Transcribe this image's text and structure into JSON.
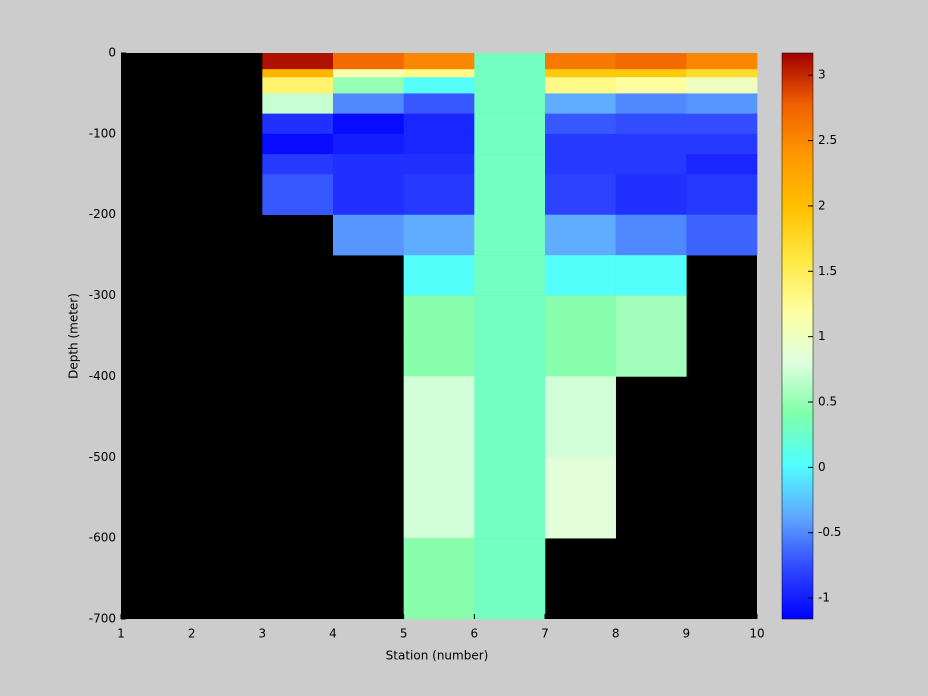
{
  "chart_data": {
    "type": "heatmap",
    "xlabel": "Station (number)",
    "ylabel": "Depth (meter)",
    "x_edges": [
      1,
      2,
      3,
      4,
      5,
      6,
      7,
      8,
      9,
      10
    ],
    "y_edges": [
      0,
      -20,
      -30,
      -50,
      -75,
      -100,
      -125,
      -150,
      -200,
      -250,
      -300,
      -350,
      -400,
      -500,
      -600,
      -700
    ],
    "z": [
      [
        null,
        null,
        3.1,
        2.7,
        2.5,
        0.3,
        2.6,
        2.7,
        2.5
      ],
      [
        null,
        null,
        2.1,
        1.1,
        1.3,
        0.3,
        1.9,
        1.9,
        1.7
      ],
      [
        null,
        null,
        1.4,
        0.5,
        0.05,
        0.3,
        1.3,
        1.2,
        1.0
      ],
      [
        null,
        null,
        0.7,
        -0.5,
        -0.7,
        0.3,
        -0.35,
        -0.5,
        -0.45
      ],
      [
        null,
        null,
        -0.9,
        -1.1,
        -0.95,
        0.3,
        -0.7,
        -0.75,
        -0.75
      ],
      [
        null,
        null,
        -1.1,
        -1.0,
        -0.95,
        0.3,
        -0.85,
        -0.85,
        -0.85
      ],
      [
        null,
        null,
        -0.85,
        -0.9,
        -0.9,
        0.3,
        -0.85,
        -0.85,
        -0.95
      ],
      [
        null,
        null,
        -0.7,
        -0.9,
        -0.85,
        0.3,
        -0.8,
        -0.9,
        -0.85
      ],
      [
        null,
        null,
        null,
        -0.45,
        -0.35,
        0.3,
        -0.35,
        -0.5,
        -0.65
      ],
      [
        null,
        null,
        null,
        null,
        0.05,
        0.3,
        0.05,
        0.05,
        null
      ],
      [
        null,
        null,
        null,
        null,
        0.45,
        0.3,
        0.45,
        0.55,
        null
      ],
      [
        null,
        null,
        null,
        null,
        0.45,
        0.3,
        0.45,
        0.55,
        null
      ],
      [
        null,
        null,
        null,
        null,
        0.75,
        0.3,
        0.75,
        null,
        null
      ],
      [
        null,
        null,
        null,
        null,
        0.75,
        0.3,
        0.85,
        null,
        null
      ],
      [
        null,
        null,
        null,
        null,
        0.45,
        0.3,
        null,
        null,
        null
      ]
    ],
    "xlim": [
      1,
      10
    ],
    "xticks": [
      1,
      2,
      3,
      4,
      5,
      6,
      7,
      8,
      9,
      10
    ],
    "ylim": [
      -700,
      0
    ],
    "yticks": [
      0,
      -100,
      -200,
      -300,
      -400,
      -500,
      -600,
      -700
    ],
    "clim": [
      -1.16,
      3.17
    ],
    "cticks": [
      -1,
      -0.5,
      0,
      0.5,
      1,
      1.5,
      2,
      2.5,
      3
    ],
    "colormap": [
      "#0000ff",
      "#3048ff",
      "#60a8ff",
      "#50ffff",
      "#80ffa8",
      "#e0ffe0",
      "#ffffa0",
      "#ffe840",
      "#ffc000",
      "#ff9800",
      "#f06000",
      "#a00000"
    ],
    "background": "#000000"
  }
}
